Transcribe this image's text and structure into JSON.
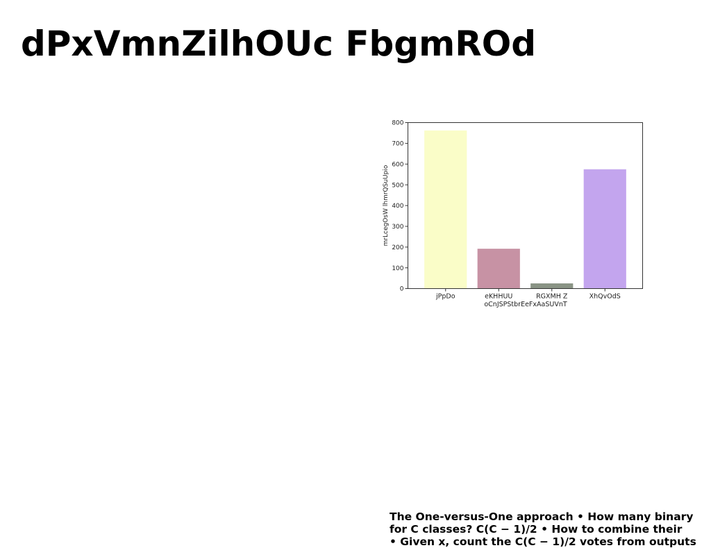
{
  "title": "dPxVmnZilhOUc FbgmROd",
  "chart_data": {
    "type": "bar",
    "categories": [
      "jPpDo",
      "eKHHUU",
      "RGXMH Z",
      "XhQvOdS"
    ],
    "values": [
      762,
      192,
      25,
      575
    ],
    "colors": [
      "#fafdc8",
      "#c792a4",
      "#8a9485",
      "#c3a5ee"
    ],
    "xlabel": "oCnJSPStbrEeFxAaSUVnT",
    "ylabel": "mrLcegOsW lhmrQSuUpio",
    "ylim": [
      0,
      800
    ],
    "yticks": [
      0,
      100,
      200,
      300,
      400,
      500,
      600,
      700,
      800
    ],
    "grid": false,
    "legend": "none"
  },
  "caption_lines": [
    "The One-versus-One approach • How many binary",
    "for C classes? C(C − 1)/2 • How to combine their",
    "• Given x, count the C(C − 1)/2 votes from outputs"
  ]
}
